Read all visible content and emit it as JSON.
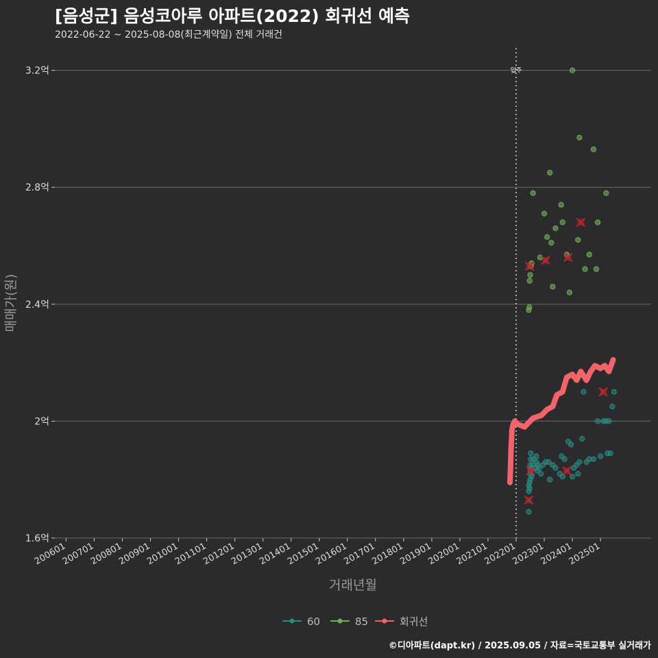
{
  "header": {
    "title": "[음성군] 음성코아루 아파트(2022) 회귀선 예측",
    "subtitle": "2022-06-22 ~ 2025-08-08(최근계약일) 전체 거래건"
  },
  "caption": "©디아파트(dapt.kr) / 2025.09.05 / 자료=국토교통부 실거래가",
  "colors": {
    "background": "#2b2a2c",
    "grid": "#6a6a6a",
    "s60": "#2a8a84",
    "s85": "#6fae5a",
    "regression": "#f0646a",
    "outlier": "#c0272d"
  },
  "chart_data": {
    "type": "scatter",
    "xlabel": "거래년월",
    "ylabel": "매매가(원)",
    "ylim": [
      1.6,
      3.3
    ],
    "y_ticks": [
      {
        "value": 1.6,
        "label": "1.6억"
      },
      {
        "value": 2.0,
        "label": "2억"
      },
      {
        "value": 2.4,
        "label": "2.4억"
      },
      {
        "value": 2.8,
        "label": "2.8억"
      },
      {
        "value": 3.2,
        "label": "3.2억"
      }
    ],
    "x_ticks": [
      "200601",
      "200701",
      "200801",
      "200901",
      "201001",
      "201101",
      "201201",
      "201301",
      "201401",
      "201501",
      "201601",
      "201701",
      "201801",
      "201901",
      "202001",
      "202101",
      "202201",
      "202301",
      "202401",
      "202501"
    ],
    "xlim": [
      2005.6,
      2026.8
    ],
    "vline": {
      "x": 2022.0,
      "label": "입주"
    },
    "legend": {
      "position": "bottom",
      "items": [
        "60",
        "85",
        "회귀선"
      ]
    },
    "series": [
      {
        "name": "60",
        "points": [
          [
            2022.45,
            1.69
          ],
          [
            2022.45,
            1.76
          ],
          [
            2022.45,
            1.78
          ],
          [
            2022.48,
            1.77
          ],
          [
            2022.48,
            1.79
          ],
          [
            2022.5,
            1.8
          ],
          [
            2022.5,
            1.82
          ],
          [
            2022.52,
            1.83
          ],
          [
            2022.55,
            1.81
          ],
          [
            2022.55,
            1.84
          ],
          [
            2022.5,
            1.85
          ],
          [
            2022.52,
            1.87
          ],
          [
            2022.52,
            1.89
          ],
          [
            2022.6,
            1.85
          ],
          [
            2022.62,
            1.87
          ],
          [
            2022.7,
            1.84
          ],
          [
            2022.72,
            1.86
          ],
          [
            2022.75,
            1.83
          ],
          [
            2022.78,
            1.85
          ],
          [
            2022.72,
            1.88
          ],
          [
            2022.82,
            1.84
          ],
          [
            2022.88,
            1.82
          ],
          [
            2022.95,
            1.85
          ],
          [
            2023.05,
            1.86
          ],
          [
            2023.15,
            1.86
          ],
          [
            2023.2,
            1.8
          ],
          [
            2023.3,
            1.85
          ],
          [
            2023.4,
            1.84
          ],
          [
            2023.55,
            1.82
          ],
          [
            2023.65,
            1.81
          ],
          [
            2023.62,
            1.88
          ],
          [
            2023.72,
            1.87
          ],
          [
            2023.85,
            1.93
          ],
          [
            2023.95,
            1.92
          ],
          [
            2024.0,
            1.81
          ],
          [
            2024.05,
            1.84
          ],
          [
            2024.15,
            1.85
          ],
          [
            2024.2,
            1.82
          ],
          [
            2024.25,
            1.86
          ],
          [
            2024.35,
            1.94
          ],
          [
            2024.5,
            1.86
          ],
          [
            2024.6,
            1.87
          ],
          [
            2024.75,
            1.87
          ],
          [
            2024.9,
            2.0
          ],
          [
            2025.0,
            1.88
          ],
          [
            2025.1,
            2.0
          ],
          [
            2025.2,
            2.0
          ],
          [
            2025.25,
            1.89
          ],
          [
            2025.35,
            1.89
          ],
          [
            2025.3,
            2.0
          ],
          [
            2025.42,
            2.05
          ],
          [
            2025.48,
            2.1
          ],
          [
            2024.4,
            2.1
          ]
        ]
      },
      {
        "name": "85",
        "points": [
          [
            2022.45,
            2.38
          ],
          [
            2022.47,
            2.39
          ],
          [
            2022.48,
            2.48
          ],
          [
            2022.5,
            2.5
          ],
          [
            2022.52,
            2.53
          ],
          [
            2022.55,
            2.54
          ],
          [
            2022.6,
            2.78
          ],
          [
            2022.85,
            2.56
          ],
          [
            2023.0,
            2.71
          ],
          [
            2023.1,
            2.63
          ],
          [
            2023.2,
            2.85
          ],
          [
            2023.25,
            2.61
          ],
          [
            2023.3,
            2.46
          ],
          [
            2023.4,
            2.66
          ],
          [
            2023.6,
            2.74
          ],
          [
            2023.65,
            2.68
          ],
          [
            2023.8,
            2.57
          ],
          [
            2023.9,
            2.44
          ],
          [
            2024.0,
            3.2
          ],
          [
            2024.2,
            2.62
          ],
          [
            2024.25,
            2.97
          ],
          [
            2024.45,
            2.52
          ],
          [
            2024.6,
            2.57
          ],
          [
            2024.75,
            2.93
          ],
          [
            2024.85,
            2.52
          ],
          [
            2025.2,
            2.78
          ],
          [
            2024.9,
            2.68
          ]
        ]
      },
      {
        "name": "회귀선",
        "points": [
          [
            2021.78,
            1.79
          ],
          [
            2021.8,
            1.84
          ],
          [
            2021.82,
            1.9
          ],
          [
            2021.85,
            1.97
          ],
          [
            2021.9,
            1.99
          ],
          [
            2021.95,
            2.0
          ],
          [
            2022.05,
            1.99
          ],
          [
            2022.3,
            1.98
          ],
          [
            2022.6,
            2.01
          ],
          [
            2022.9,
            2.02
          ],
          [
            2023.1,
            2.04
          ],
          [
            2023.3,
            2.05
          ],
          [
            2023.45,
            2.09
          ],
          [
            2023.65,
            2.1
          ],
          [
            2023.8,
            2.15
          ],
          [
            2024.0,
            2.16
          ],
          [
            2024.15,
            2.14
          ],
          [
            2024.3,
            2.17
          ],
          [
            2024.5,
            2.14
          ],
          [
            2024.65,
            2.17
          ],
          [
            2024.8,
            2.19
          ],
          [
            2025.0,
            2.18
          ],
          [
            2025.15,
            2.19
          ],
          [
            2025.3,
            2.17
          ],
          [
            2025.45,
            2.21
          ]
        ]
      }
    ],
    "outliers": [
      [
        2022.45,
        1.73
      ],
      [
        2022.52,
        1.83
      ],
      [
        2022.48,
        2.53
      ],
      [
        2023.05,
        2.55
      ],
      [
        2023.85,
        2.56
      ],
      [
        2024.3,
        2.68
      ],
      [
        2023.8,
        1.83
      ],
      [
        2025.1,
        2.1
      ]
    ]
  }
}
